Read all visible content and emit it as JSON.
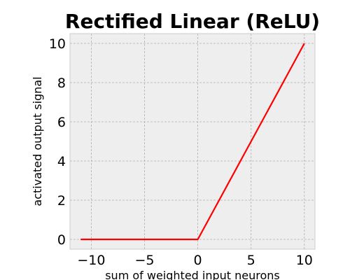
{
  "chart_data": {
    "type": "line",
    "title": "Rectified Linear (ReLU)",
    "xlabel": "sum of weighted input neurons",
    "ylabel": "activated output signal",
    "x": [
      -11,
      0,
      10
    ],
    "series": [
      {
        "values": [
          0,
          0,
          10
        ],
        "color": "#ff0000"
      }
    ],
    "xlim": [
      -12,
      11
    ],
    "ylim": [
      -0.5,
      10.5
    ],
    "xticks": [
      -10,
      -5,
      0,
      5,
      10
    ],
    "xtick_labels": [
      "−10",
      "−5",
      "0",
      "5",
      "10"
    ],
    "yticks": [
      0,
      2,
      4,
      6,
      8,
      10
    ],
    "ytick_labels": [
      "0",
      "2",
      "4",
      "6",
      "8",
      "10"
    ],
    "grid": true,
    "background_color": "#eeeeee",
    "grid_color": "#b0b0b0"
  }
}
